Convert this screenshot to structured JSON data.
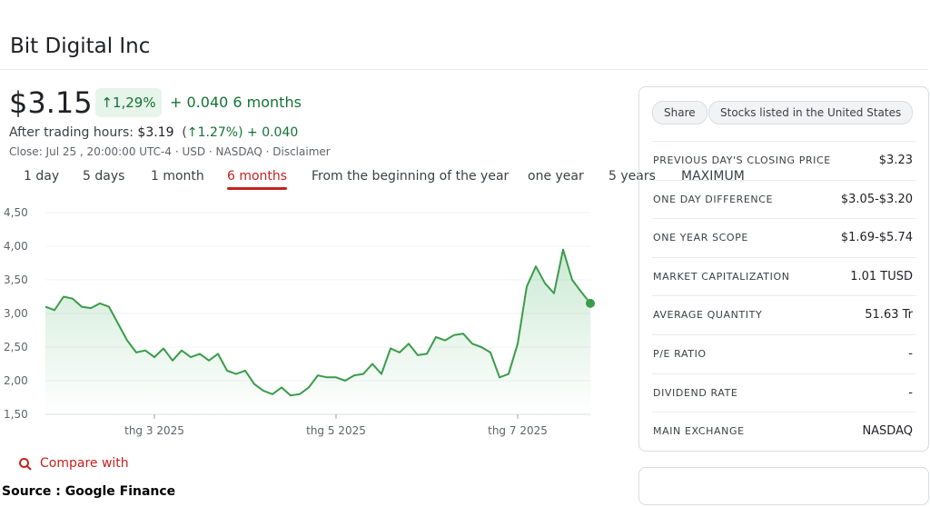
{
  "header": {
    "title": "Bit Digital Inc"
  },
  "quote": {
    "price": "$3.15",
    "change_pct": "1,29%",
    "change_abs": "+ 0.040",
    "period": "6 months",
    "after_label": "After trading hours:",
    "after_price": "$3.19",
    "after_pct": "1.27%)",
    "after_pct_open": "(",
    "after_abs": "+ 0.040",
    "close_line": "Close: Jul 25 , 20:00:00 UTC-4 · USD · NASDAQ · Disclaimer"
  },
  "tabs": [
    "1 day",
    "5 days",
    "1 month",
    "6 months",
    "From the beginning of the year",
    "one year",
    "5 years",
    "MAXIMUM"
  ],
  "selected_tab": 3,
  "chart_data": {
    "type": "line",
    "categories": [
      null,
      null,
      null,
      null,
      null,
      null,
      null,
      null,
      null,
      null,
      null,
      null,
      "thg 3 2025",
      null,
      null,
      null,
      null,
      null,
      null,
      null,
      null,
      null,
      null,
      null,
      null,
      null,
      null,
      null,
      null,
      null,
      null,
      null,
      "thg 5 2025",
      null,
      null,
      null,
      null,
      null,
      null,
      null,
      null,
      null,
      null,
      null,
      null,
      null,
      null,
      null,
      null,
      null,
      null,
      null,
      "thg 7 2025",
      null,
      null,
      null,
      null,
      null,
      null,
      null,
      null
    ],
    "series": [
      {
        "name": "Bit Digital Inc",
        "color": "#3a9c4a",
        "values": [
          3.1,
          3.05,
          3.25,
          3.22,
          3.1,
          3.08,
          3.15,
          3.1,
          2.85,
          2.6,
          2.42,
          2.45,
          2.35,
          2.48,
          2.3,
          2.45,
          2.35,
          2.4,
          2.3,
          2.4,
          2.15,
          2.1,
          2.15,
          1.95,
          1.85,
          1.8,
          1.9,
          1.78,
          1.8,
          1.9,
          2.08,
          2.05,
          2.05,
          2.0,
          2.08,
          2.1,
          2.25,
          2.1,
          2.48,
          2.42,
          2.55,
          2.38,
          2.4,
          2.65,
          2.6,
          2.68,
          2.7,
          2.55,
          2.5,
          2.42,
          2.05,
          2.1,
          2.55,
          3.4,
          3.7,
          3.45,
          3.3,
          3.95,
          3.5,
          3.32,
          3.15
        ]
      }
    ],
    "ylim": [
      1.5,
      4.5
    ],
    "yticks": [
      {
        "value": 1.5,
        "label": "1,50"
      },
      {
        "value": 2,
        "label": "2,00"
      },
      {
        "value": 2.5,
        "label": "2,50"
      },
      {
        "value": 3,
        "label": "3,00"
      },
      {
        "value": 3.5,
        "label": "3,50"
      },
      {
        "value": 4,
        "label": "4,00"
      },
      {
        "value": 4.5,
        "label": "4,50"
      }
    ],
    "grid": true
  },
  "compare": "Compare with",
  "chips": [
    "Share",
    "Stocks listed in the United States"
  ],
  "stats": [
    {
      "label": "PREVIOUS DAY'S CLOSING PRICE",
      "value": "$3.23"
    },
    {
      "label": "ONE DAY DIFFERENCE",
      "value": "$3.05-$3.20"
    },
    {
      "label": "ONE YEAR SCOPE",
      "value": "$1.69-$5.74"
    },
    {
      "label": "MARKET CAPITALIZATION",
      "value": "1.01 TUSD"
    },
    {
      "label": "AVERAGE QUANTITY",
      "value": "51.63 Tr"
    },
    {
      "label": "P/E RATIO",
      "value": "-"
    },
    {
      "label": "DIVIDEND RATE",
      "value": "-"
    },
    {
      "label": "MAIN EXCHANGE",
      "value": "NASDAQ"
    }
  ],
  "source": "Source : Google Finance"
}
